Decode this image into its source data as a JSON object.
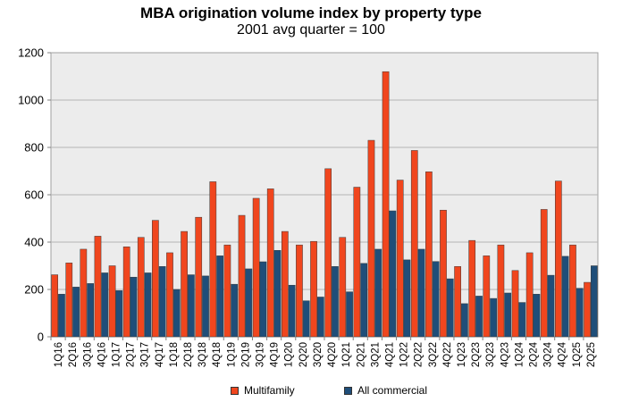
{
  "chart_data": {
    "type": "bar",
    "title": "MBA origination volume index by property type",
    "subtitle": "2001 avg quarter = 100",
    "xlabel": "",
    "ylabel": "",
    "ylim": [
      0,
      1200
    ],
    "yticks": [
      0,
      200,
      400,
      600,
      800,
      1000,
      1200
    ],
    "grid": true,
    "legend_position": "bottom",
    "categories": [
      "1Q16",
      "2Q16",
      "3Q16",
      "4Q16",
      "1Q17",
      "2Q17",
      "3Q17",
      "4Q17",
      "1Q18",
      "2Q18",
      "3Q18",
      "4Q18",
      "1Q19",
      "2Q19",
      "3Q19",
      "4Q19",
      "1Q20",
      "2Q20",
      "3Q20",
      "4Q20",
      "1Q21",
      "2Q21",
      "3Q21",
      "4Q21",
      "1Q22",
      "2Q22",
      "3Q22",
      "4Q22",
      "1Q23",
      "2Q23",
      "3Q23",
      "4Q23",
      "1Q24",
      "2Q24",
      "3Q24",
      "4Q24",
      "1Q25",
      "2Q25"
    ],
    "series": [
      {
        "name": "Multifamily",
        "color": "#f0461e",
        "values": [
          262,
          312,
          370,
          425,
          300,
          380,
          420,
          492,
          355,
          445,
          505,
          655,
          388,
          513,
          585,
          625,
          445,
          388,
          403,
          710,
          420,
          632,
          830,
          1120,
          662,
          787,
          697,
          535,
          297,
          407,
          342,
          388,
          280,
          355,
          538,
          658,
          388,
          230
        ]
      },
      {
        "name": "All commercial",
        "color": "#1f4e79",
        "values": [
          180,
          210,
          225,
          270,
          195,
          252,
          270,
          297,
          200,
          262,
          257,
          342,
          222,
          287,
          317,
          365,
          218,
          152,
          168,
          297,
          190,
          310,
          370,
          532,
          325,
          370,
          318,
          245,
          140,
          172,
          162,
          185,
          145,
          180,
          260,
          340,
          205,
          300
        ]
      }
    ]
  }
}
